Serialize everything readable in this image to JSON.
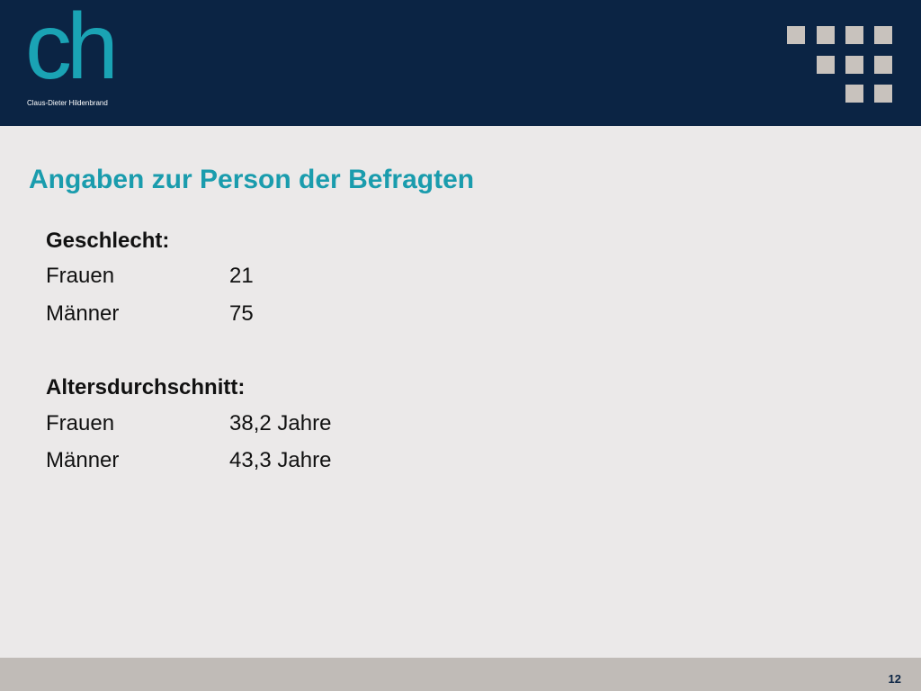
{
  "logo": {
    "mark": "ch",
    "name": "Claus-Dieter Hildenbrand"
  },
  "colors": {
    "header": "#0b2444",
    "accent": "#1aa3b4",
    "background": "#ebe9e9",
    "footer": "#c0bbb7"
  },
  "title": "Angaben zur Person der Befragten",
  "gender": {
    "heading": "Geschlecht:",
    "rows": [
      {
        "label": "Frauen",
        "value": "21"
      },
      {
        "label": "Männer",
        "value": "75"
      }
    ]
  },
  "age": {
    "heading": "Altersdurchschnitt:",
    "rows": [
      {
        "label": "Frauen",
        "value": "38,2 Jahre"
      },
      {
        "label": "Männer",
        "value": "43,3 Jahre"
      }
    ]
  },
  "footer": {
    "page_number": "12"
  }
}
